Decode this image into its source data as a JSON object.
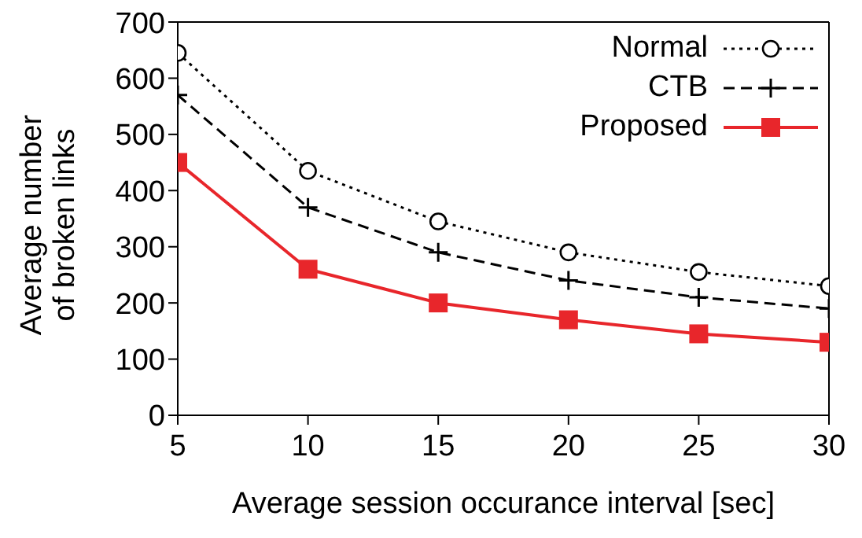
{
  "chart_data": {
    "type": "line",
    "xlabel": "Average session occurance interval [sec]",
    "ylabel": "Average number of broken links",
    "x": [
      5,
      10,
      15,
      20,
      25,
      30
    ],
    "xlim": [
      5,
      30
    ],
    "xticks": [
      5,
      10,
      15,
      20,
      25,
      30
    ],
    "ylim": [
      0,
      700
    ],
    "yticks": [
      0,
      100,
      200,
      300,
      400,
      500,
      600,
      700
    ],
    "legend": "top right",
    "series": [
      {
        "name": "Normal",
        "color": "#000000",
        "marker": "circle",
        "line_style": "dotted",
        "values": [
          645,
          435,
          345,
          290,
          255,
          230
        ]
      },
      {
        "name": "CTB",
        "color": "#000000",
        "marker": "cross",
        "line_style": "dashed",
        "values": [
          570,
          370,
          290,
          240,
          210,
          190
        ]
      },
      {
        "name": "Proposed",
        "color": "#e8262b",
        "marker": "square",
        "line_style": "solid",
        "values": [
          450,
          260,
          200,
          170,
          145,
          130
        ]
      }
    ]
  }
}
